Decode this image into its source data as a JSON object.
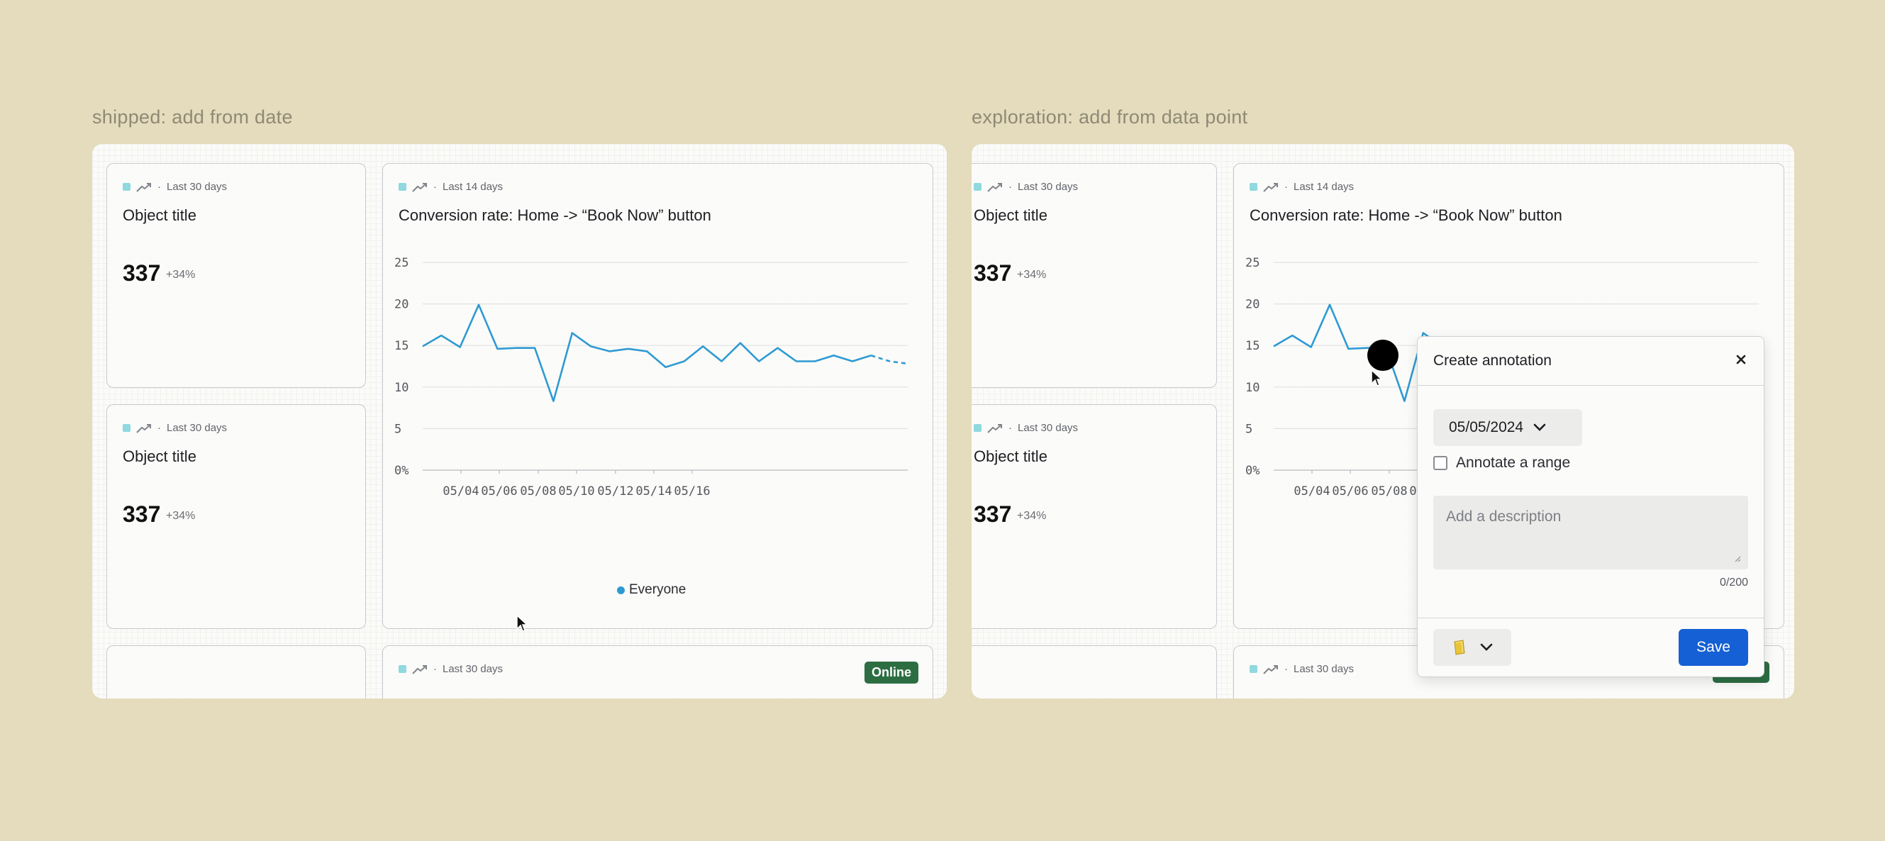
{
  "left": {
    "frame_label": "shipped: add from date",
    "cards": [
      {
        "range": "Last 30 days",
        "title": "Object title",
        "value": "337",
        "delta": "+34%"
      },
      {
        "range": "Last 30 days",
        "title": "Object title",
        "value": "337",
        "delta": "+34%"
      }
    ],
    "chart_card": {
      "range": "Last 14 days",
      "title": "Conversion rate: Home -> “Book Now” button"
    },
    "bottom_card": {
      "range": "Last 30 days",
      "badge": "Online"
    }
  },
  "right": {
    "frame_label": "exploration: add from data point",
    "cards": [
      {
        "range": "Last 30 days",
        "title": "Object title",
        "value": "337",
        "delta": "+34%"
      },
      {
        "range": "Last 30 days",
        "title": "Object title",
        "value": "337",
        "delta": "+34%"
      }
    ],
    "chart_card": {
      "range": "Last 14 days",
      "title": "Conversion rate: Home -> “Book Now” button"
    },
    "bottom_card": {
      "range": "Last 30 days"
    }
  },
  "popover": {
    "title": "Create annotation",
    "date": "05/05/2024",
    "range_label": "Annotate a range",
    "description_placeholder": "Add a description",
    "counter": "0/200",
    "save_label": "Save",
    "close_icon": "close-icon",
    "color_icon": "yellow-note-icon"
  },
  "colors": {
    "background": "#e5dbbd",
    "line": "#2e9ad3",
    "save_button": "#1560d4",
    "online_badge": "#2c6e42"
  },
  "chart_data": {
    "type": "line",
    "title": "Conversion rate: Home -> “Book Now” button",
    "y_ticks": [
      "25",
      "20",
      "15",
      "10",
      "5",
      "0%"
    ],
    "ylim": [
      0,
      25
    ],
    "x_ticks": [
      "05/04",
      "05/06",
      "05/08",
      "05/10",
      "05/12",
      "05/14",
      "05/16"
    ],
    "x": [
      "05/03",
      "05/03",
      "05/04",
      "05/04",
      "05/05",
      "05/05",
      "05/06",
      "05/07",
      "05/08",
      "05/08",
      "05/09",
      "05/09",
      "05/10",
      "05/10",
      "05/11",
      "05/11",
      "05/12",
      "05/12",
      "05/13",
      "05/13",
      "05/14",
      "05/14",
      "05/15",
      "05/15",
      "05/16",
      "05/16",
      "05/17"
    ],
    "series": [
      {
        "name": "Everyone",
        "values": [
          14.9,
          16.2,
          14.8,
          19.9,
          14.6,
          14.7,
          14.7,
          8.3,
          16.5,
          14.9,
          14.3,
          14.6,
          14.3,
          12.4,
          13.1,
          14.9,
          13.1,
          15.3,
          13.1,
          14.7,
          13.1,
          13.1,
          13.8,
          13.1,
          13.8,
          13.1,
          12.8
        ],
        "projected_from_index": 24
      }
    ],
    "legend": "bottom-center",
    "grid": true
  }
}
